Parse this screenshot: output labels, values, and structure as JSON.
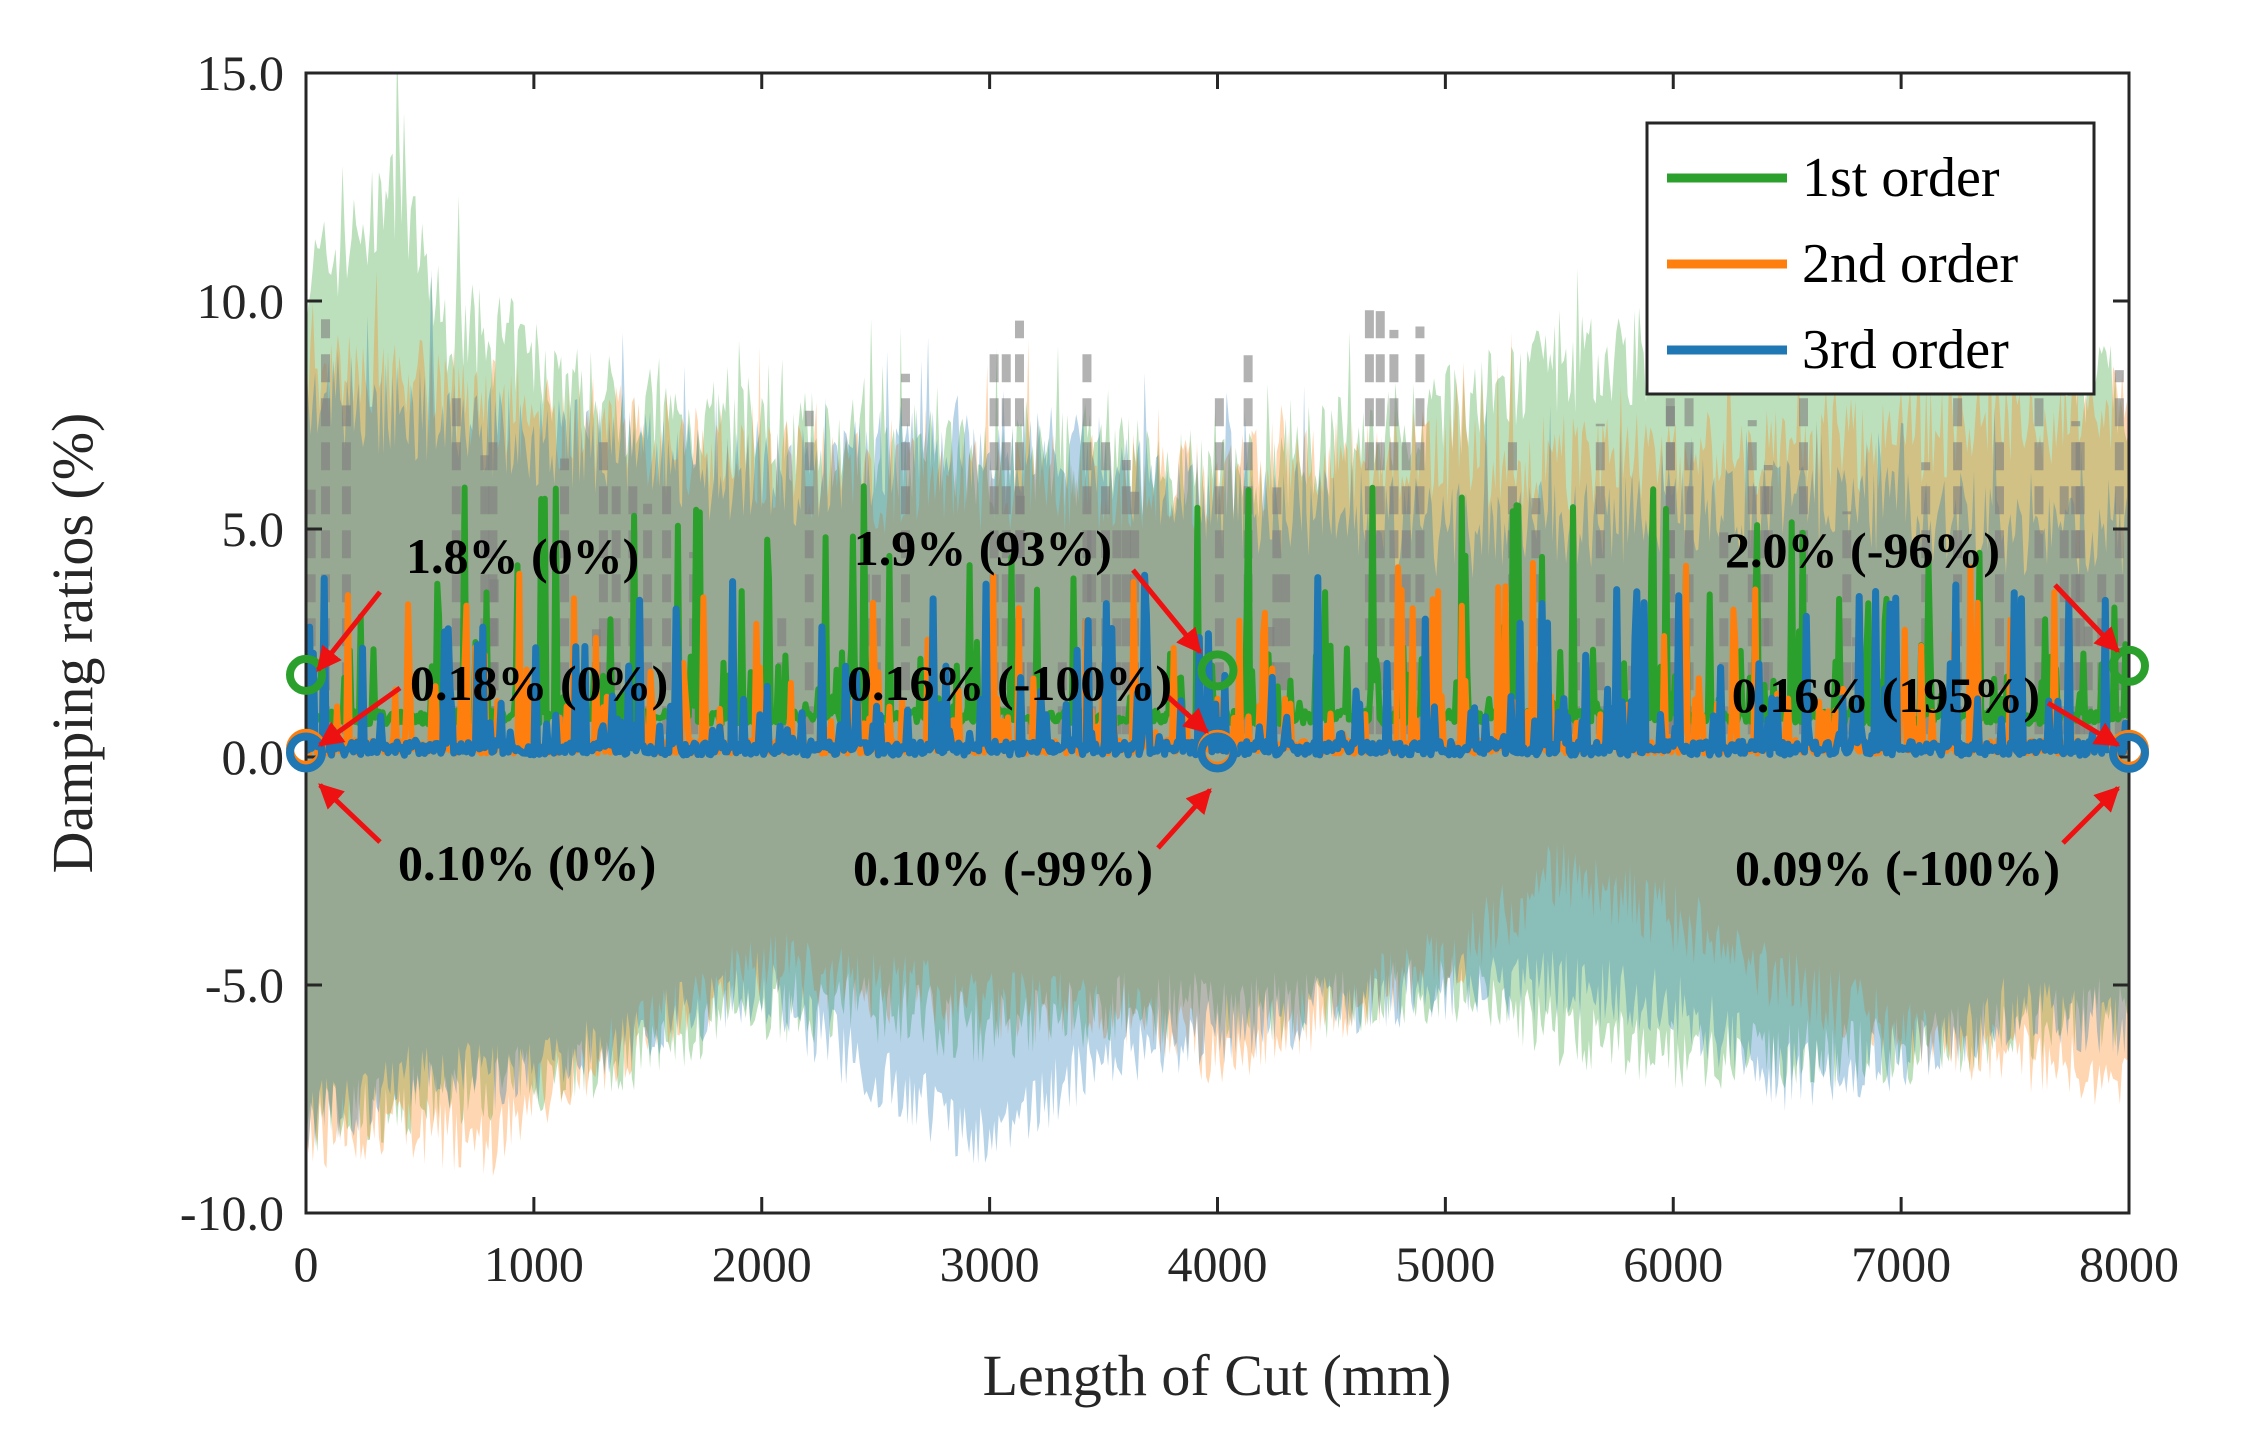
{
  "chart_data": {
    "type": "line",
    "xlabel": "Length of Cut (mm)",
    "ylabel": "Damping ratios (%)",
    "xlim": [
      0,
      8000
    ],
    "ylim": [
      -10,
      15
    ],
    "xticks": [
      0,
      1000,
      2000,
      3000,
      4000,
      5000,
      6000,
      7000,
      8000
    ],
    "xtick_labels": [
      "0",
      "1000",
      "2000",
      "3000",
      "4000",
      "5000",
      "6000",
      "7000",
      "8000"
    ],
    "yticks": [
      -10,
      -5,
      0,
      5,
      10,
      15
    ],
    "ytick_labels": [
      "-10.0",
      "-5.0",
      "0.0",
      "5.0",
      "10.0",
      "15.0"
    ],
    "grid": false,
    "legend_position": "top-right",
    "series": [
      {
        "name": "1st order",
        "color": "#2ca02c",
        "markers": [
          {
            "x": 0,
            "y": 1.8
          },
          {
            "x": 4000,
            "y": 1.9
          },
          {
            "x": 8000,
            "y": 2.0
          }
        ],
        "band_upper": [
          [
            0,
            10.5
          ],
          [
            250,
            11.5
          ],
          [
            400,
            12.5
          ],
          [
            600,
            9.5
          ],
          [
            900,
            9.0
          ],
          [
            1200,
            8.0
          ],
          [
            1500,
            7.5
          ],
          [
            2000,
            7.0
          ],
          [
            2500,
            6.8
          ],
          [
            3000,
            6.5
          ],
          [
            3500,
            6.5
          ],
          [
            4000,
            6.0
          ],
          [
            4500,
            6.8
          ],
          [
            5000,
            7.5
          ],
          [
            5500,
            8.5
          ],
          [
            6000,
            9.0
          ],
          [
            6500,
            9.5
          ],
          [
            7000,
            10.0
          ],
          [
            7500,
            9.0
          ],
          [
            8000,
            8.0
          ]
        ],
        "band_lower": [
          [
            0,
            -8.0
          ],
          [
            500,
            -7.5
          ],
          [
            1000,
            -7.0
          ],
          [
            1500,
            -6.5
          ],
          [
            2000,
            -5.5
          ],
          [
            2500,
            -5.5
          ],
          [
            3000,
            -6.0
          ],
          [
            3500,
            -5.5
          ],
          [
            4000,
            -5.5
          ],
          [
            4500,
            -5.5
          ],
          [
            5000,
            -5.0
          ],
          [
            5500,
            -6.0
          ],
          [
            6000,
            -6.5
          ],
          [
            6500,
            -6.5
          ],
          [
            7000,
            -6.5
          ],
          [
            7500,
            -6.0
          ],
          [
            8000,
            -5.5
          ]
        ]
      },
      {
        "name": "2nd order",
        "color": "#ff7f0e",
        "markers": [
          {
            "x": 0,
            "y": 0.18
          },
          {
            "x": 4000,
            "y": 0.16
          },
          {
            "x": 8000,
            "y": 0.16
          }
        ],
        "band_upper": [
          [
            0,
            8.5
          ],
          [
            300,
            8.5
          ],
          [
            600,
            8.0
          ],
          [
            1000,
            7.5
          ],
          [
            1500,
            7.0
          ],
          [
            2000,
            6.5
          ],
          [
            2500,
            6.0
          ],
          [
            3000,
            6.0
          ],
          [
            3500,
            6.0
          ],
          [
            4000,
            6.0
          ],
          [
            4500,
            6.5
          ],
          [
            5000,
            6.5
          ],
          [
            5500,
            6.5
          ],
          [
            6000,
            6.5
          ],
          [
            6500,
            6.5
          ],
          [
            7000,
            7.0
          ],
          [
            7500,
            7.5
          ],
          [
            8000,
            7.5
          ]
        ],
        "band_lower": [
          [
            0,
            -8.3
          ],
          [
            400,
            -8.0
          ],
          [
            800,
            -8.5
          ],
          [
            1000,
            -7.5
          ],
          [
            1500,
            -6.0
          ],
          [
            2000,
            -4.5
          ],
          [
            2500,
            -5.0
          ],
          [
            3000,
            -5.5
          ],
          [
            3500,
            -5.5
          ],
          [
            4000,
            -6.5
          ],
          [
            4500,
            -5.5
          ],
          [
            5000,
            -4.5
          ],
          [
            5500,
            -2.5
          ],
          [
            6000,
            -3.5
          ],
          [
            6500,
            -5.0
          ],
          [
            7000,
            -6.0
          ],
          [
            7500,
            -6.5
          ],
          [
            8000,
            -7.0
          ]
        ]
      },
      {
        "name": "3rd order",
        "color": "#1f77b4",
        "markers": [
          {
            "x": 0,
            "y": 0.1
          },
          {
            "x": 4000,
            "y": 0.1
          },
          {
            "x": 8000,
            "y": 0.09
          }
        ],
        "band_upper": [
          [
            0,
            8.0
          ],
          [
            500,
            7.5
          ],
          [
            1000,
            7.0
          ],
          [
            1500,
            6.5
          ],
          [
            2000,
            6.0
          ],
          [
            2500,
            6.5
          ],
          [
            3000,
            7.0
          ],
          [
            3500,
            6.5
          ],
          [
            4000,
            5.5
          ],
          [
            4500,
            5.5
          ],
          [
            5000,
            5.0
          ],
          [
            5500,
            5.0
          ],
          [
            6000,
            5.5
          ],
          [
            6500,
            5.5
          ],
          [
            7000,
            5.5
          ],
          [
            7500,
            5.0
          ],
          [
            8000,
            5.0
          ]
        ],
        "band_lower": [
          [
            0,
            -8.0
          ],
          [
            500,
            -7.0
          ],
          [
            1000,
            -7.0
          ],
          [
            1500,
            -6.0
          ],
          [
            2000,
            -5.0
          ],
          [
            2500,
            -7.0
          ],
          [
            3000,
            -8.5
          ],
          [
            3500,
            -6.5
          ],
          [
            4000,
            -6.0
          ],
          [
            4500,
            -5.5
          ],
          [
            5000,
            -5.0
          ],
          [
            5500,
            -5.0
          ],
          [
            6000,
            -5.5
          ],
          [
            6500,
            -7.0
          ],
          [
            7000,
            -6.5
          ],
          [
            7500,
            -5.5
          ],
          [
            8000,
            -6.0
          ]
        ]
      }
    ],
    "annotations": [
      {
        "text": "1.8% (0%)",
        "x": 0,
        "y": 1.8,
        "color": "#2ca02c"
      },
      {
        "text": "0.18% (0%)",
        "x": 0,
        "y": 0.18,
        "color": "#ff7f0e"
      },
      {
        "text": "0.10% (0%)",
        "x": 0,
        "y": 0.1,
        "color": "#1f77b4"
      },
      {
        "text": "1.9% (93%)",
        "x": 4000,
        "y": 1.9,
        "color": "#2ca02c"
      },
      {
        "text": "0.16% (-100%)",
        "x": 4000,
        "y": 0.16,
        "color": "#ff7f0e"
      },
      {
        "text": "0.10% (-99%)",
        "x": 4000,
        "y": 0.1,
        "color": "#1f77b4"
      },
      {
        "text": "2.0% (-96%)",
        "x": 8000,
        "y": 2.0,
        "color": "#2ca02c"
      },
      {
        "text": "0.16% (195%)",
        "x": 8000,
        "y": 0.16,
        "color": "#ff7f0e"
      },
      {
        "text": "0.09% (-100%)",
        "x": 8000,
        "y": 0.09,
        "color": "#1f77b4"
      }
    ],
    "arrow_color": "#ee1111"
  }
}
